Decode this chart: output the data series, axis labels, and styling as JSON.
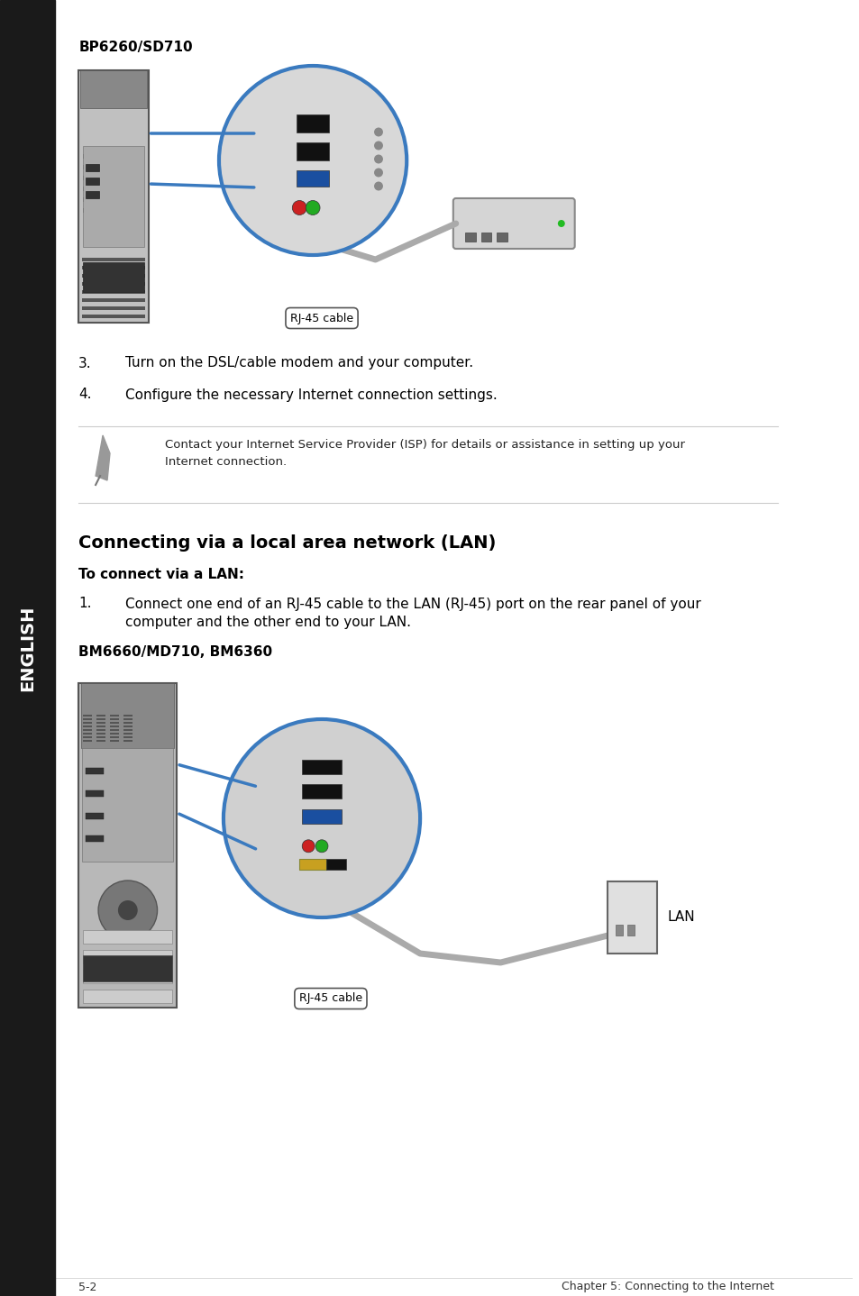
{
  "page_bg": "#ffffff",
  "sidebar_bg": "#1a1a1a",
  "sidebar_text": "ENGLISH",
  "sidebar_text_color": "#ffffff",
  "page_number": "5-2",
  "chapter_text": "Chapter 5: Connecting to the Internet",
  "section1_title": "BP6260/SD710",
  "label_rj45_1": "RJ-45 cable",
  "step3": "3. Turn on the DSL/cable modem and your computer.",
  "step4": "4. Configure the necessary Internet connection settings.",
  "note_text": "Contact your Internet Service Provider (ISP) for details or assistance in setting up your\nInternet connection.",
  "section2_title": "Connecting via a local area network (LAN)",
  "subsection2_title": "To connect via a LAN:",
  "step1_lan": "1. Connect one end of an RJ-45 cable to the LAN (RJ-45) port on the rear panel of your\n  computer and the other end to your LAN.",
  "section3_title": "BM6660/MD710, BM6360",
  "label_rj45_2": "RJ-45 cable",
  "label_lan": "LAN"
}
